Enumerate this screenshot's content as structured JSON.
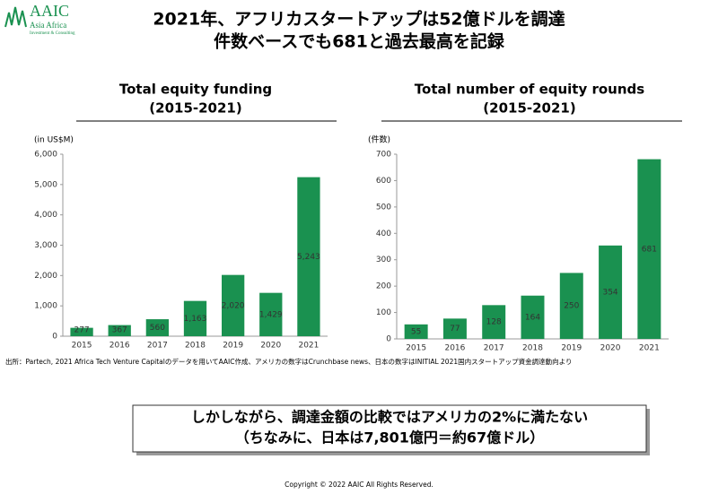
{
  "logo": {
    "name": "AAIC",
    "line1": "Asia Africa",
    "line2": "Investment & Consulting"
  },
  "header": {
    "title_line1": "2021年、アフリカスタートアップは52億ドルを調達",
    "title_line2": "件数ベースでも681と過去最高を記録"
  },
  "chart_data": [
    {
      "type": "bar",
      "title": "Total equity funding",
      "subtitle": "(2015-2021)",
      "y_label": "(in US$M)",
      "categories": [
        "2015",
        "2016",
        "2017",
        "2018",
        "2019",
        "2020",
        "2021"
      ],
      "values": [
        277,
        367,
        560,
        1163,
        2020,
        1429,
        5243
      ],
      "value_labels": [
        "277",
        "367",
        "560",
        "1,163",
        "2,020",
        "1,429",
        "5,243"
      ],
      "color": "#1a9150",
      "ylim": [
        0,
        6000
      ],
      "yticks": [
        0,
        {
          "value": 1000,
          "label": "1,000"
        },
        {
          "value": 2000,
          "label": "2,000"
        },
        {
          "value": 3000,
          "label": "3,000"
        },
        {
          "value": 4000,
          "label": "4,000"
        },
        {
          "value": 5000,
          "label": "5,000"
        },
        {
          "value": 6000,
          "label": "6,000"
        }
      ],
      "grid": false
    },
    {
      "type": "bar",
      "title": "Total number of equity rounds",
      "subtitle": "(2015-2021)",
      "y_label": "(件数)",
      "categories": [
        "2015",
        "2016",
        "2017",
        "2018",
        "2019",
        "2020",
        "2021"
      ],
      "values": [
        55,
        77,
        128,
        164,
        250,
        354,
        681
      ],
      "color": "#1a9150",
      "ylim": [
        0,
        700
      ],
      "yticks": [
        0,
        100,
        200,
        300,
        400,
        500,
        600,
        700
      ],
      "grid": false
    }
  ],
  "source": "出所：Partech, 2021 Africa Tech Venture Capitalのデータを用いてAAIC作成、アメリカの数字はCrunchbase news、日本の数字はINITIAL 2021国内スタートアップ資金調達動向より",
  "callout": {
    "line1": "しかしながら、調達金額の比較ではアメリカの2%に満たない",
    "line2": "（ちなみに、日本は7,801億円＝約67億ドル）"
  },
  "copyright": "Copyright © 2022 AAIC All Rights Reserved."
}
